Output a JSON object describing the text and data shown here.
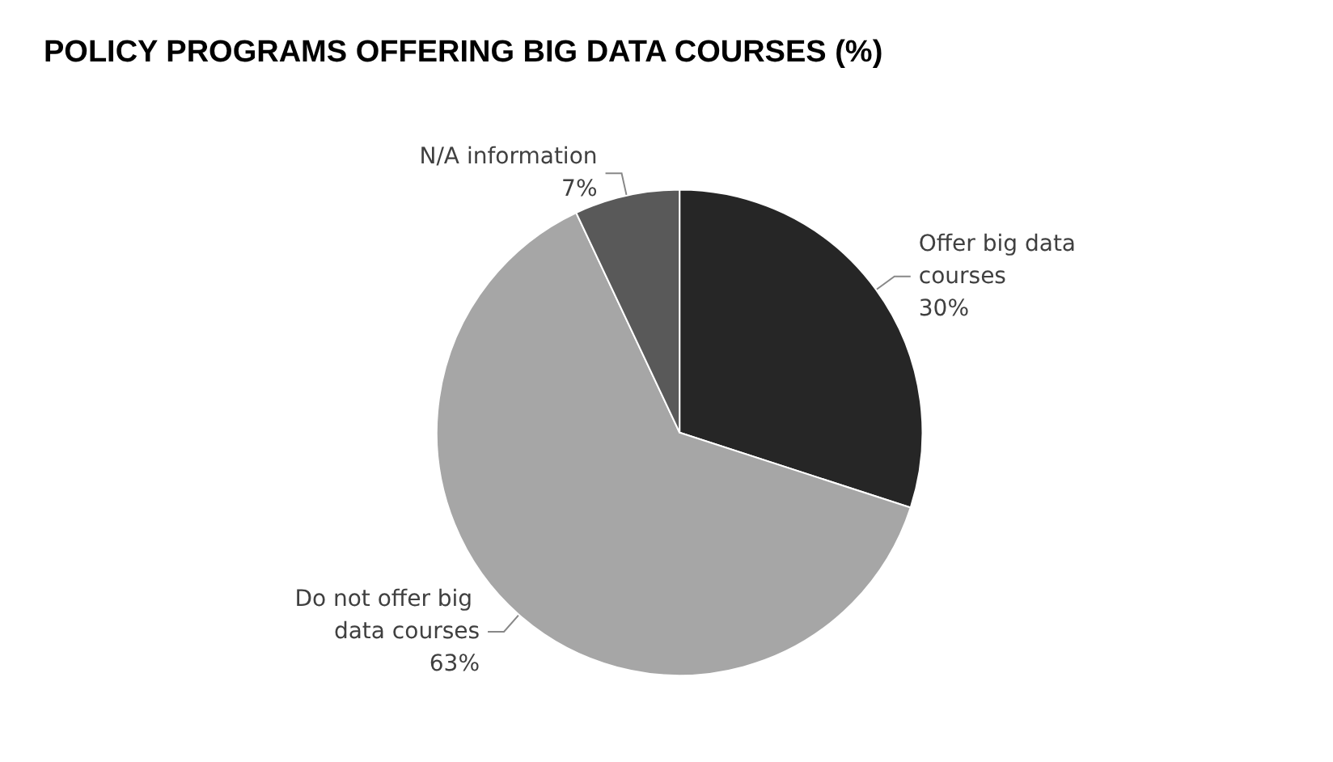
{
  "chart_data": {
    "type": "pie",
    "title": "POLICY PROGRAMS OFFERING BIG DATA COURSES (%)",
    "categories": [
      "Offer big data courses",
      "Do not offer big data courses",
      "N/A information"
    ],
    "values": [
      30,
      63,
      7
    ],
    "colors": [
      "#262626",
      "#a6a6a6",
      "#595959"
    ],
    "value_labels": [
      "30%",
      "63%",
      "7%"
    ],
    "legend": false
  }
}
